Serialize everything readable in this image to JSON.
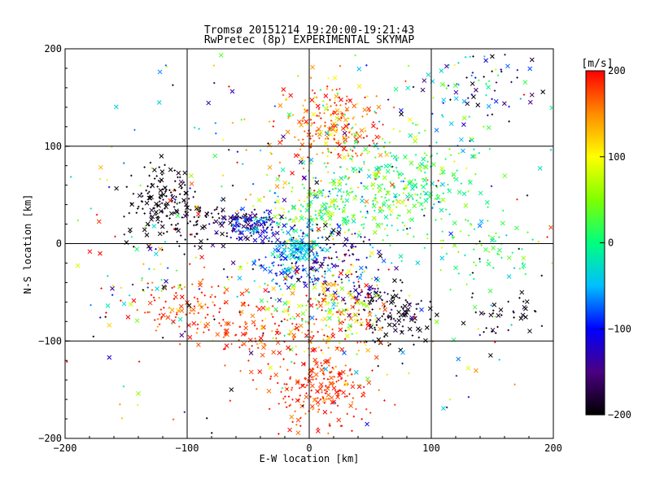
{
  "chart_data": {
    "type": "scatter",
    "title": "Tromsø 20151214 19:20:00-19:21:43",
    "subtitle": "RwPretec (8p) EXPERIMENTAL SKYMAP",
    "xlabel": "E-W location [km]",
    "ylabel": "N-S location [km]",
    "xlim": [
      -200,
      200
    ],
    "ylim": [
      -200,
      200
    ],
    "xticks": [
      -200,
      -100,
      0,
      100,
      200
    ],
    "yticks": [
      -200,
      -100,
      0,
      100,
      200
    ],
    "grid": true,
    "markers": [
      "x",
      "+"
    ],
    "colorbar": {
      "label": "[m/s]",
      "range": [
        -200,
        200
      ],
      "ticks": [
        200,
        100,
        0,
        -100,
        -200
      ],
      "colormap": "rainbow",
      "stops": [
        "#000000",
        "#4b0082",
        "#0000ff",
        "#00bfff",
        "#00ff7f",
        "#7fff00",
        "#ffff00",
        "#ff8c00",
        "#ff0000"
      ]
    },
    "clusters": [
      {
        "x": 20,
        "y": 120,
        "sx": 22,
        "sy": 25,
        "n": 260,
        "v": 160,
        "vs": 40
      },
      {
        "x": 70,
        "y": 60,
        "sx": 35,
        "sy": 30,
        "n": 330,
        "v": 10,
        "vs": 40
      },
      {
        "x": 5,
        "y": 35,
        "sx": 20,
        "sy": 18,
        "n": 160,
        "v": 40,
        "vs": 60
      },
      {
        "x": -120,
        "y": 45,
        "sx": 15,
        "sy": 18,
        "n": 140,
        "v": -195,
        "vs": 10
      },
      {
        "x": -80,
        "y": 20,
        "sx": 25,
        "sy": 12,
        "n": 90,
        "v": -190,
        "vs": 15
      },
      {
        "x": -45,
        "y": 18,
        "sx": 12,
        "sy": 8,
        "n": 140,
        "v": -110,
        "vs": 40
      },
      {
        "x": -10,
        "y": -5,
        "sx": 10,
        "sy": 7,
        "n": 120,
        "v": -40,
        "vs": 25
      },
      {
        "x": -15,
        "y": -25,
        "sx": 15,
        "sy": 10,
        "n": 80,
        "v": -80,
        "vs": 40
      },
      {
        "x": 20,
        "y": -20,
        "sx": 22,
        "sy": 15,
        "n": 110,
        "v": -140,
        "vs": 40
      },
      {
        "x": 45,
        "y": -55,
        "sx": 10,
        "sy": 8,
        "n": 50,
        "v": -150,
        "vs": 20
      },
      {
        "x": 70,
        "y": -75,
        "sx": 15,
        "sy": 20,
        "n": 100,
        "v": -195,
        "vs": 10
      },
      {
        "x": -100,
        "y": -70,
        "sx": 18,
        "sy": 15,
        "n": 90,
        "v": 180,
        "vs": 20
      },
      {
        "x": -45,
        "y": -90,
        "sx": 18,
        "sy": 15,
        "n": 80,
        "v": 180,
        "vs": 20
      },
      {
        "x": 15,
        "y": -70,
        "sx": 25,
        "sy": 20,
        "n": 220,
        "v": 120,
        "vs": 80
      },
      {
        "x": 10,
        "y": -145,
        "sx": 22,
        "sy": 25,
        "n": 230,
        "v": 185,
        "vs": 20
      },
      {
        "x": 150,
        "y": -10,
        "sx": 20,
        "sy": 18,
        "n": 60,
        "v": 20,
        "vs": 30
      },
      {
        "x": 160,
        "y": -75,
        "sx": 15,
        "sy": 15,
        "n": 40,
        "v": -195,
        "vs": 10
      },
      {
        "x": 130,
        "y": 160,
        "sx": 30,
        "sy": 25,
        "n": 90,
        "v": -80,
        "vs": 100
      },
      {
        "x": -140,
        "y": -30,
        "sx": 30,
        "sy": 30,
        "n": 60,
        "v": 60,
        "vs": 150
      },
      {
        "x": 0,
        "y": 0,
        "sx": 110,
        "sy": 110,
        "n": 350,
        "v": 0,
        "vs": 140
      }
    ]
  }
}
